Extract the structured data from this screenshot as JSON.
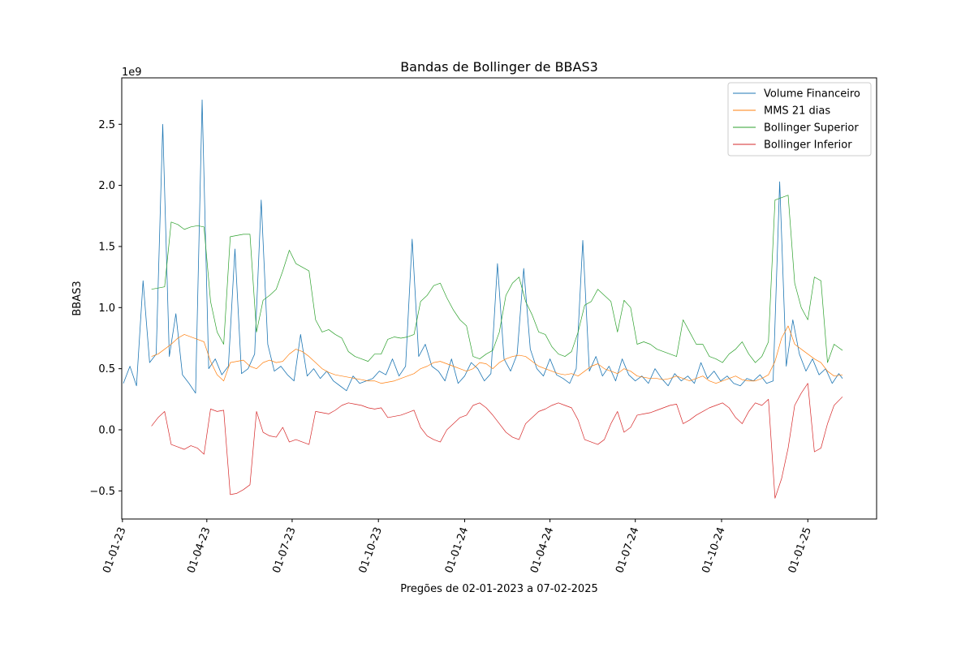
{
  "chart_data": {
    "type": "line",
    "title": "Bandas de Bollinger de BBAS3",
    "xlabel": "Pregões de 02-01-2023 a 07-02-2025",
    "ylabel": "BBAS3",
    "y_offset_label": "1e9",
    "y_multiplier": 1000000000,
    "xlim": [
      "2023-01-02",
      "2025-02-07"
    ],
    "ylim": [
      -0.73,
      2.88
    ],
    "x_ticks": [
      {
        "date": "2023-01-01",
        "label": "01-01-23"
      },
      {
        "date": "2023-04-01",
        "label": "01-04-23"
      },
      {
        "date": "2023-07-01",
        "label": "01-07-23"
      },
      {
        "date": "2023-10-01",
        "label": "01-10-23"
      },
      {
        "date": "2024-01-01",
        "label": "01-01-24"
      },
      {
        "date": "2024-04-01",
        "label": "01-04-24"
      },
      {
        "date": "2024-07-01",
        "label": "01-07-24"
      },
      {
        "date": "2024-10-01",
        "label": "01-10-24"
      },
      {
        "date": "2025-01-01",
        "label": "01-01-25"
      }
    ],
    "y_ticks": [
      {
        "value": -0.5,
        "label": "−0.5"
      },
      {
        "value": 0.0,
        "label": "0.0"
      },
      {
        "value": 0.5,
        "label": "0.5"
      },
      {
        "value": 1.0,
        "label": "1.0"
      },
      {
        "value": 1.5,
        "label": "1.5"
      },
      {
        "value": 2.0,
        "label": "2.0"
      },
      {
        "value": 2.5,
        "label": "2.5"
      }
    ],
    "grid": false,
    "legend_position": "top-right",
    "series": [
      {
        "name": "Volume Financeiro",
        "color": "#1f77b4",
        "x": [
          "2023-01-02",
          "2023-01-09",
          "2023-01-16",
          "2023-01-23",
          "2023-01-30",
          "2023-02-06",
          "2023-02-13",
          "2023-02-20",
          "2023-02-27",
          "2023-03-06",
          "2023-03-13",
          "2023-03-20",
          "2023-03-27",
          "2023-04-03",
          "2023-04-10",
          "2023-04-17",
          "2023-04-24",
          "2023-05-01",
          "2023-05-08",
          "2023-05-15",
          "2023-05-22",
          "2023-05-29",
          "2023-06-05",
          "2023-06-12",
          "2023-06-19",
          "2023-06-26",
          "2023-07-03",
          "2023-07-10",
          "2023-07-17",
          "2023-07-24",
          "2023-07-31",
          "2023-08-07",
          "2023-08-14",
          "2023-08-21",
          "2023-08-28",
          "2023-09-04",
          "2023-09-11",
          "2023-09-18",
          "2023-09-25",
          "2023-10-02",
          "2023-10-09",
          "2023-10-16",
          "2023-10-23",
          "2023-10-30",
          "2023-11-06",
          "2023-11-13",
          "2023-11-20",
          "2023-11-27",
          "2023-12-04",
          "2023-12-11",
          "2023-12-18",
          "2023-12-25",
          "2024-01-01",
          "2024-01-08",
          "2024-01-15",
          "2024-01-22",
          "2024-01-29",
          "2024-02-05",
          "2024-02-12",
          "2024-02-19",
          "2024-02-26",
          "2024-03-04",
          "2024-03-11",
          "2024-03-18",
          "2024-03-25",
          "2024-04-01",
          "2024-04-08",
          "2024-04-15",
          "2024-04-22",
          "2024-04-29",
          "2024-05-06",
          "2024-05-13",
          "2024-05-20",
          "2024-05-27",
          "2024-06-03",
          "2024-06-10",
          "2024-06-17",
          "2024-06-24",
          "2024-07-01",
          "2024-07-08",
          "2024-07-15",
          "2024-07-22",
          "2024-07-29",
          "2024-08-05",
          "2024-08-12",
          "2024-08-19",
          "2024-08-26",
          "2024-09-02",
          "2024-09-09",
          "2024-09-16",
          "2024-09-23",
          "2024-09-30",
          "2024-10-07",
          "2024-10-14",
          "2024-10-21",
          "2024-10-28",
          "2024-11-04",
          "2024-11-11",
          "2024-11-18",
          "2024-11-25",
          "2024-12-02",
          "2024-12-09",
          "2024-12-16",
          "2024-12-23",
          "2024-12-30",
          "2025-01-06",
          "2025-01-13",
          "2025-01-20",
          "2025-01-27",
          "2025-02-03",
          "2025-02-07"
        ],
        "values": [
          0.38,
          0.52,
          0.36,
          1.22,
          0.55,
          0.62,
          2.5,
          0.6,
          0.95,
          0.45,
          0.38,
          0.3,
          2.7,
          0.5,
          0.58,
          0.45,
          0.52,
          1.48,
          0.46,
          0.5,
          0.62,
          1.88,
          0.7,
          0.48,
          0.52,
          0.45,
          0.4,
          0.78,
          0.44,
          0.5,
          0.42,
          0.48,
          0.4,
          0.36,
          0.32,
          0.44,
          0.38,
          0.4,
          0.42,
          0.48,
          0.45,
          0.58,
          0.44,
          0.52,
          1.56,
          0.6,
          0.7,
          0.52,
          0.48,
          0.4,
          0.58,
          0.38,
          0.44,
          0.55,
          0.5,
          0.4,
          0.46,
          1.36,
          0.58,
          0.48,
          0.62,
          1.32,
          0.66,
          0.5,
          0.44,
          0.58,
          0.45,
          0.42,
          0.38,
          0.5,
          1.55,
          0.48,
          0.6,
          0.44,
          0.52,
          0.4,
          0.58,
          0.45,
          0.4,
          0.44,
          0.38,
          0.5,
          0.42,
          0.36,
          0.46,
          0.4,
          0.44,
          0.38,
          0.55,
          0.42,
          0.48,
          0.4,
          0.44,
          0.38,
          0.36,
          0.42,
          0.4,
          0.45,
          0.38,
          0.4,
          2.03,
          0.52,
          0.9,
          0.62,
          0.48,
          0.58,
          0.45,
          0.5,
          0.38,
          0.46,
          0.42
        ]
      },
      {
        "name": "MMS 21 dias",
        "color": "#ff7f0e",
        "x": [
          "2023-02-01",
          "2023-02-08",
          "2023-02-15",
          "2023-02-22",
          "2023-03-01",
          "2023-03-08",
          "2023-03-15",
          "2023-03-22",
          "2023-03-29",
          "2023-04-05",
          "2023-04-12",
          "2023-04-19",
          "2023-04-26",
          "2023-05-03",
          "2023-05-10",
          "2023-05-17",
          "2023-05-24",
          "2023-05-31",
          "2023-06-07",
          "2023-06-14",
          "2023-06-21",
          "2023-06-28",
          "2023-07-05",
          "2023-07-12",
          "2023-07-19",
          "2023-07-26",
          "2023-08-02",
          "2023-08-09",
          "2023-08-16",
          "2023-08-23",
          "2023-08-30",
          "2023-09-06",
          "2023-09-13",
          "2023-09-20",
          "2023-09-27",
          "2023-10-04",
          "2023-10-11",
          "2023-10-18",
          "2023-10-25",
          "2023-11-01",
          "2023-11-08",
          "2023-11-15",
          "2023-11-22",
          "2023-11-29",
          "2023-12-06",
          "2023-12-13",
          "2023-12-20",
          "2023-12-27",
          "2024-01-03",
          "2024-01-10",
          "2024-01-17",
          "2024-01-24",
          "2024-01-31",
          "2024-02-07",
          "2024-02-14",
          "2024-02-21",
          "2024-02-28",
          "2024-03-06",
          "2024-03-13",
          "2024-03-20",
          "2024-03-27",
          "2024-04-03",
          "2024-04-10",
          "2024-04-17",
          "2024-04-24",
          "2024-05-01",
          "2024-05-08",
          "2024-05-15",
          "2024-05-22",
          "2024-05-29",
          "2024-06-05",
          "2024-06-12",
          "2024-06-19",
          "2024-06-26",
          "2024-07-03",
          "2024-07-10",
          "2024-07-17",
          "2024-07-24",
          "2024-07-31",
          "2024-08-07",
          "2024-08-14",
          "2024-08-21",
          "2024-08-28",
          "2024-09-04",
          "2024-09-11",
          "2024-09-18",
          "2024-09-25",
          "2024-10-02",
          "2024-10-09",
          "2024-10-16",
          "2024-10-23",
          "2024-10-30",
          "2024-11-06",
          "2024-11-13",
          "2024-11-20",
          "2024-11-27",
          "2024-12-04",
          "2024-12-11",
          "2024-12-18",
          "2024-12-25",
          "2025-01-01",
          "2025-01-08",
          "2025-01-15",
          "2025-01-22",
          "2025-01-29",
          "2025-02-07"
        ],
        "values": [
          0.6,
          0.62,
          0.66,
          0.7,
          0.75,
          0.78,
          0.76,
          0.74,
          0.72,
          0.56,
          0.45,
          0.4,
          0.55,
          0.56,
          0.57,
          0.52,
          0.5,
          0.55,
          0.57,
          0.55,
          0.56,
          0.62,
          0.66,
          0.64,
          0.6,
          0.55,
          0.5,
          0.47,
          0.45,
          0.44,
          0.43,
          0.42,
          0.41,
          0.4,
          0.4,
          0.38,
          0.39,
          0.4,
          0.42,
          0.44,
          0.46,
          0.5,
          0.52,
          0.55,
          0.56,
          0.54,
          0.52,
          0.5,
          0.48,
          0.5,
          0.55,
          0.54,
          0.5,
          0.55,
          0.58,
          0.6,
          0.61,
          0.6,
          0.56,
          0.52,
          0.5,
          0.48,
          0.46,
          0.45,
          0.46,
          0.44,
          0.48,
          0.52,
          0.54,
          0.5,
          0.48,
          0.46,
          0.5,
          0.48,
          0.44,
          0.43,
          0.42,
          0.42,
          0.41,
          0.42,
          0.44,
          0.42,
          0.4,
          0.42,
          0.44,
          0.4,
          0.38,
          0.4,
          0.42,
          0.44,
          0.41,
          0.4,
          0.4,
          0.42,
          0.45,
          0.56,
          0.75,
          0.85,
          0.7,
          0.66,
          0.62,
          0.58,
          0.55,
          0.48,
          0.44,
          0.45
        ]
      },
      {
        "name": "Bollinger Superior",
        "color": "#2ca02c",
        "x": [
          "2023-02-01",
          "2023-02-08",
          "2023-02-15",
          "2023-02-22",
          "2023-03-01",
          "2023-03-08",
          "2023-03-15",
          "2023-03-22",
          "2023-03-29",
          "2023-04-05",
          "2023-04-12",
          "2023-04-19",
          "2023-04-26",
          "2023-05-03",
          "2023-05-10",
          "2023-05-17",
          "2023-05-24",
          "2023-05-31",
          "2023-06-07",
          "2023-06-14",
          "2023-06-21",
          "2023-06-28",
          "2023-07-05",
          "2023-07-12",
          "2023-07-19",
          "2023-07-26",
          "2023-08-02",
          "2023-08-09",
          "2023-08-16",
          "2023-08-23",
          "2023-08-30",
          "2023-09-06",
          "2023-09-13",
          "2023-09-20",
          "2023-09-27",
          "2023-10-04",
          "2023-10-11",
          "2023-10-18",
          "2023-10-25",
          "2023-11-01",
          "2023-11-08",
          "2023-11-15",
          "2023-11-22",
          "2023-11-29",
          "2023-12-06",
          "2023-12-13",
          "2023-12-20",
          "2023-12-27",
          "2024-01-03",
          "2024-01-10",
          "2024-01-17",
          "2024-01-24",
          "2024-01-31",
          "2024-02-07",
          "2024-02-14",
          "2024-02-21",
          "2024-02-28",
          "2024-03-06",
          "2024-03-13",
          "2024-03-20",
          "2024-03-27",
          "2024-04-03",
          "2024-04-10",
          "2024-04-17",
          "2024-04-24",
          "2024-05-01",
          "2024-05-08",
          "2024-05-15",
          "2024-05-22",
          "2024-05-29",
          "2024-06-05",
          "2024-06-12",
          "2024-06-19",
          "2024-06-26",
          "2024-07-03",
          "2024-07-10",
          "2024-07-17",
          "2024-07-24",
          "2024-07-31",
          "2024-08-07",
          "2024-08-14",
          "2024-08-21",
          "2024-08-28",
          "2024-09-04",
          "2024-09-11",
          "2024-09-18",
          "2024-09-25",
          "2024-10-02",
          "2024-10-09",
          "2024-10-16",
          "2024-10-23",
          "2024-10-30",
          "2024-11-06",
          "2024-11-13",
          "2024-11-20",
          "2024-11-27",
          "2024-12-04",
          "2024-12-11",
          "2024-12-18",
          "2024-12-25",
          "2025-01-01",
          "2025-01-08",
          "2025-01-15",
          "2025-01-22",
          "2025-01-29",
          "2025-02-07"
        ],
        "values": [
          1.15,
          1.16,
          1.17,
          1.7,
          1.68,
          1.64,
          1.66,
          1.67,
          1.66,
          1.05,
          0.8,
          0.7,
          1.58,
          1.59,
          1.6,
          1.6,
          0.8,
          1.06,
          1.1,
          1.15,
          1.3,
          1.47,
          1.36,
          1.33,
          1.3,
          0.9,
          0.8,
          0.82,
          0.78,
          0.75,
          0.64,
          0.6,
          0.58,
          0.56,
          0.62,
          0.62,
          0.74,
          0.76,
          0.75,
          0.76,
          0.78,
          1.05,
          1.1,
          1.18,
          1.2,
          1.08,
          0.98,
          0.9,
          0.85,
          0.6,
          0.58,
          0.62,
          0.65,
          0.8,
          1.1,
          1.2,
          1.25,
          1.05,
          0.94,
          0.8,
          0.78,
          0.68,
          0.62,
          0.6,
          0.64,
          0.8,
          1.02,
          1.05,
          1.15,
          1.1,
          1.05,
          0.8,
          1.06,
          1.0,
          0.7,
          0.72,
          0.7,
          0.66,
          0.64,
          0.62,
          0.6,
          0.9,
          0.8,
          0.7,
          0.7,
          0.6,
          0.58,
          0.55,
          0.62,
          0.66,
          0.72,
          0.62,
          0.55,
          0.6,
          0.72,
          1.88,
          1.9,
          1.92,
          1.2,
          1.0,
          0.9,
          1.25,
          1.22,
          0.55,
          0.7,
          0.65
        ]
      },
      {
        "name": "Bollinger Inferior",
        "color": "#d62728",
        "x": [
          "2023-02-01",
          "2023-02-08",
          "2023-02-15",
          "2023-02-22",
          "2023-03-01",
          "2023-03-08",
          "2023-03-15",
          "2023-03-22",
          "2023-03-29",
          "2023-04-05",
          "2023-04-12",
          "2023-04-19",
          "2023-04-26",
          "2023-05-03",
          "2023-05-10",
          "2023-05-17",
          "2023-05-24",
          "2023-05-31",
          "2023-06-07",
          "2023-06-14",
          "2023-06-21",
          "2023-06-28",
          "2023-07-05",
          "2023-07-12",
          "2023-07-19",
          "2023-07-26",
          "2023-08-02",
          "2023-08-09",
          "2023-08-16",
          "2023-08-23",
          "2023-08-30",
          "2023-09-06",
          "2023-09-13",
          "2023-09-20",
          "2023-09-27",
          "2023-10-04",
          "2023-10-11",
          "2023-10-18",
          "2023-10-25",
          "2023-11-01",
          "2023-11-08",
          "2023-11-15",
          "2023-11-22",
          "2023-11-29",
          "2023-12-06",
          "2023-12-13",
          "2023-12-20",
          "2023-12-27",
          "2024-01-03",
          "2024-01-10",
          "2024-01-17",
          "2024-01-24",
          "2024-01-31",
          "2024-02-07",
          "2024-02-14",
          "2024-02-21",
          "2024-02-28",
          "2024-03-06",
          "2024-03-13",
          "2024-03-20",
          "2024-03-27",
          "2024-04-03",
          "2024-04-10",
          "2024-04-17",
          "2024-04-24",
          "2024-05-01",
          "2024-05-08",
          "2024-05-15",
          "2024-05-22",
          "2024-05-29",
          "2024-06-05",
          "2024-06-12",
          "2024-06-19",
          "2024-06-26",
          "2024-07-03",
          "2024-07-10",
          "2024-07-17",
          "2024-07-24",
          "2024-07-31",
          "2024-08-07",
          "2024-08-14",
          "2024-08-21",
          "2024-08-28",
          "2024-09-04",
          "2024-09-11",
          "2024-09-18",
          "2024-09-25",
          "2024-10-02",
          "2024-10-09",
          "2024-10-16",
          "2024-10-23",
          "2024-10-30",
          "2024-11-06",
          "2024-11-13",
          "2024-11-20",
          "2024-11-27",
          "2024-12-04",
          "2024-12-11",
          "2024-12-18",
          "2024-12-25",
          "2025-01-01",
          "2025-01-08",
          "2025-01-15",
          "2025-01-22",
          "2025-01-29",
          "2025-02-07"
        ],
        "values": [
          0.03,
          0.1,
          0.15,
          -0.12,
          -0.14,
          -0.16,
          -0.13,
          -0.15,
          -0.2,
          0.17,
          0.15,
          0.16,
          -0.53,
          -0.52,
          -0.49,
          -0.45,
          0.15,
          -0.02,
          -0.05,
          -0.06,
          0.02,
          -0.1,
          -0.08,
          -0.1,
          -0.12,
          0.15,
          0.14,
          0.13,
          0.16,
          0.2,
          0.22,
          0.21,
          0.2,
          0.18,
          0.17,
          0.18,
          0.1,
          0.11,
          0.12,
          0.14,
          0.16,
          0.02,
          -0.05,
          -0.08,
          -0.1,
          0.0,
          0.05,
          0.1,
          0.12,
          0.2,
          0.22,
          0.18,
          0.12,
          0.05,
          -0.02,
          -0.06,
          -0.08,
          0.05,
          0.1,
          0.15,
          0.17,
          0.2,
          0.22,
          0.2,
          0.18,
          0.08,
          -0.08,
          -0.1,
          -0.12,
          -0.08,
          0.05,
          0.15,
          -0.02,
          0.02,
          0.12,
          0.13,
          0.14,
          0.16,
          0.18,
          0.2,
          0.21,
          0.05,
          0.08,
          0.12,
          0.15,
          0.18,
          0.2,
          0.22,
          0.18,
          0.1,
          0.05,
          0.15,
          0.22,
          0.2,
          0.25,
          -0.56,
          -0.4,
          -0.15,
          0.2,
          0.3,
          0.38,
          -0.18,
          -0.15,
          0.05,
          0.2,
          0.27
        ]
      }
    ]
  }
}
